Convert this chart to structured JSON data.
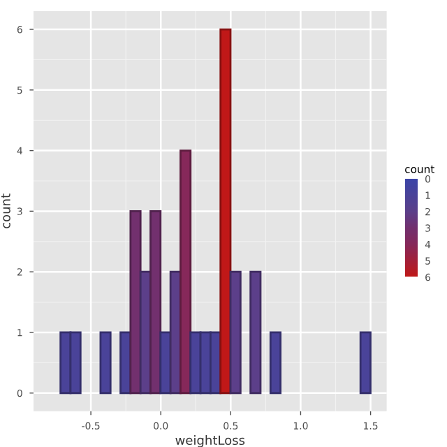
{
  "chart_data": {
    "type": "histogram",
    "xlabel": "weightLoss",
    "ylabel": "count",
    "clabel": "count",
    "bins": [
      -0.717,
      -0.6455,
      -0.574,
      -0.5025,
      -0.431,
      -0.3595,
      -0.288,
      -0.2165,
      -0.145,
      -0.0735,
      -0.002,
      0.0695,
      0.141,
      0.2125,
      0.284,
      0.3555,
      0.427,
      0.4985,
      0.57,
      0.6415,
      0.713,
      0.7845,
      0.856,
      0.9275,
      0.999,
      1.0705,
      1.142,
      1.2135,
      1.285,
      1.3565,
      1.428,
      1.4995
    ],
    "values": [
      1,
      1,
      0,
      0,
      1,
      0,
      1,
      3,
      2,
      3,
      1,
      2,
      4,
      1,
      1,
      1,
      6,
      2,
      0,
      2,
      0,
      1,
      0,
      0,
      0,
      0,
      0,
      0,
      0,
      0,
      1
    ],
    "colors": [
      "#4a4399",
      "#4a4399",
      "#3c44a8",
      "#3c44a8",
      "#4a4399",
      "#3c44a8",
      "#4a4399",
      "#72306e",
      "#5c3f8a",
      "#72306e",
      "#4a4399",
      "#5c3f8a",
      "#86285a",
      "#4a4399",
      "#4a4399",
      "#4a4399",
      "#c01818",
      "#5c3f8a",
      "#3c44a8",
      "#5c3f8a",
      "#3c44a8",
      "#4a4399",
      "#3c44a8",
      "#3c44a8",
      "#3c44a8",
      "#3c44a8",
      "#3c44a8",
      "#3c44a8",
      "#3c44a8",
      "#3c44a8",
      "#4a4399"
    ],
    "clim": [
      0,
      6
    ],
    "cticks": [
      0,
      1,
      2,
      3,
      4,
      5,
      6
    ],
    "xlim": [
      -0.91,
      1.615
    ],
    "ylim": [
      -0.3,
      6.3
    ],
    "xticks": [
      {
        "value": -0.5,
        "label": "-0.5"
      },
      {
        "value": 0,
        "label": "0.0"
      },
      {
        "value": 0.5,
        "label": "0.5"
      },
      {
        "value": 1,
        "label": "1.0"
      },
      {
        "value": 1.5,
        "label": "1.5"
      }
    ],
    "yticks": [
      0,
      1,
      2,
      3,
      4,
      5,
      6
    ],
    "grid": true
  }
}
